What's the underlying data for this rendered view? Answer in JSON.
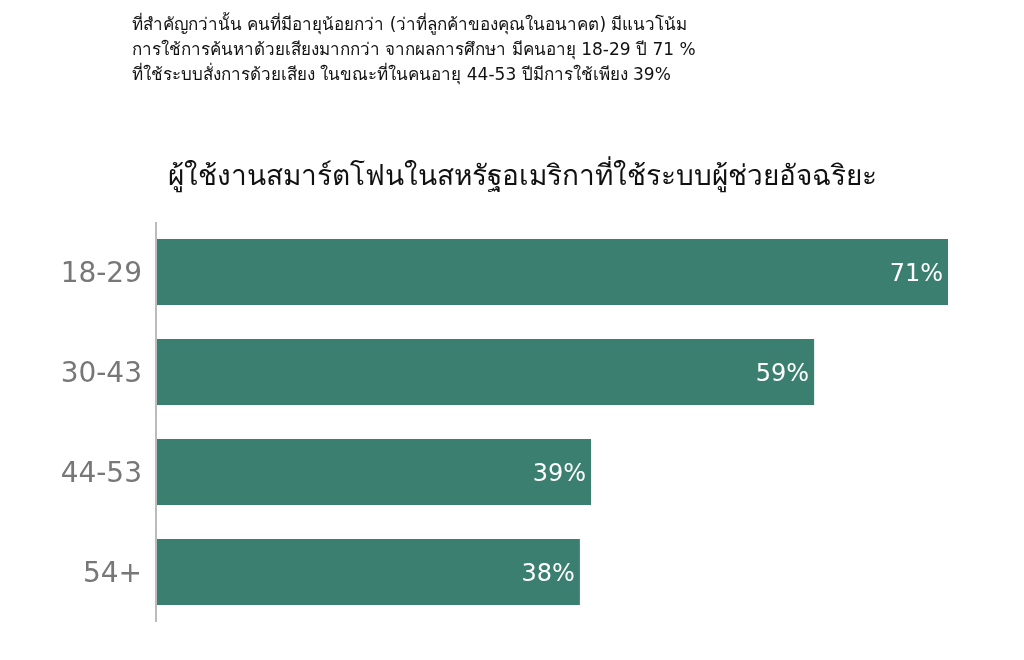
{
  "chart_data": {
    "type": "bar",
    "orientation": "horizontal",
    "tick_labels": "y",
    "annotations": [
      "ที่สำคัญกว่านั้น คนที่มีอายุน้อยกว่า (ว่าที่ลูกค้าของคุณในอนาคต) มีแนวโน้ม",
      "การใช้การค้นหาด้วยเสียงมากกว่า จากผลการศึกษา มีคนอายุ 18-29 ปี 71 %",
      "ที่ใช้ระบบสั่งการด้วยเสียง ในขณะที่ในคนอายุ 44-53 ปีมีการใช้เพียง 39%"
    ],
    "title": "ผู้ใช้งานสมาร์ตโฟนในสหรัฐอเมริกาที่ใช้ระบบผู้ช่วยอัจฉริยะ",
    "categories": [
      "18-29",
      "30-43",
      "44-53",
      "54+"
    ],
    "values": [
      71,
      59,
      39,
      38
    ],
    "value_labels": [
      "71%",
      "59%",
      "39%",
      "38%"
    ],
    "color": "#3a7f70"
  }
}
